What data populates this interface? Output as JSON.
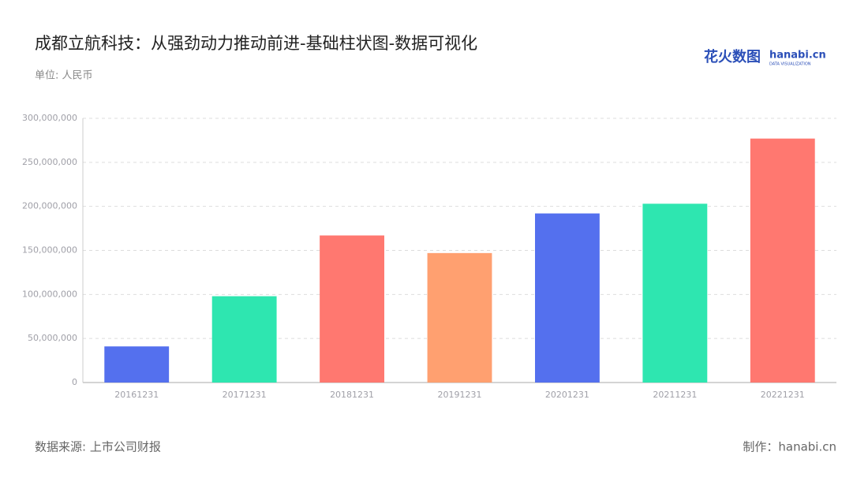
{
  "chart_data": {
    "type": "bar",
    "title": "成都立航科技：从强劲动力推动前进-基础柱状图-数据可视化",
    "subtitle": "单位: 人民币",
    "source": "数据来源: 上市公司财报",
    "credit": "制作：hanabi.cn",
    "logo": {
      "name": "花火数图",
      "brand": "hanabi.cn",
      "tagline": "DATA VISUALIZATION"
    },
    "categories": [
      "20161231",
      "20171231",
      "20181231",
      "20191231",
      "20201231",
      "20211231",
      "20221231"
    ],
    "values": [
      41000000,
      98000000,
      167000000,
      147000000,
      192000000,
      203000000,
      277000000
    ],
    "colors": [
      "#5470ee",
      "#2ee6b0",
      "#ff7870",
      "#ffa070",
      "#5470ee",
      "#2ee6b0",
      "#ff7870"
    ],
    "ylim": [
      0,
      300000000
    ],
    "yticks": [
      0,
      {
        "value": 50000000,
        "label": "50,000,000"
      },
      {
        "value": 100000000,
        "label": "100,000,000"
      },
      {
        "value": 150000000,
        "label": "150,000,000"
      },
      {
        "value": 200000000,
        "label": "200,000,000"
      },
      {
        "value": 250000000,
        "label": "250,000,000"
      },
      {
        "value": 300000000,
        "label": "300,000,000"
      }
    ],
    "grid": true
  }
}
